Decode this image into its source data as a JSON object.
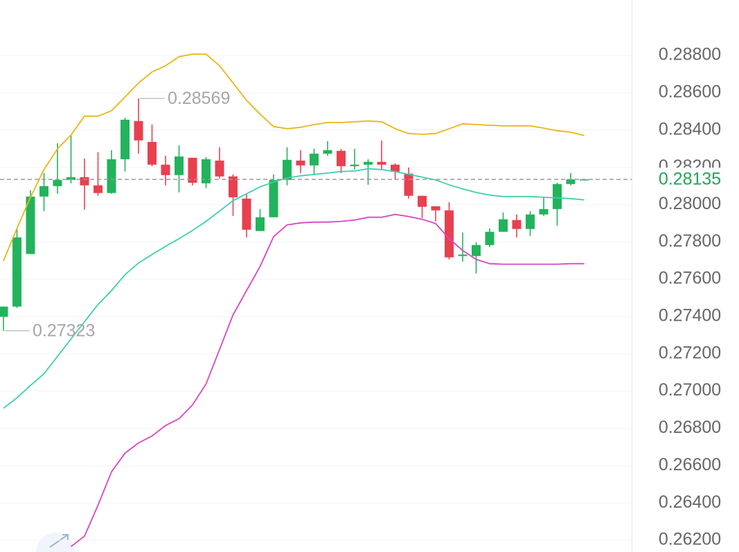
{
  "chart_data": {
    "type": "candlestick",
    "ylim": [
      0.26137,
      0.29097
    ],
    "yticks": [
      {
        "value": 0.288,
        "label": "0.28800"
      },
      {
        "value": 0.286,
        "label": "0.28600"
      },
      {
        "value": 0.284,
        "label": "0.28400"
      },
      {
        "value": 0.282,
        "label": "0.28200"
      },
      {
        "value": 0.28,
        "label": "0.28000"
      },
      {
        "value": 0.278,
        "label": "0.27800"
      },
      {
        "value": 0.276,
        "label": "0.27600"
      },
      {
        "value": 0.274,
        "label": "0.27400"
      },
      {
        "value": 0.272,
        "label": "0.27200"
      },
      {
        "value": 0.27,
        "label": "0.27000"
      },
      {
        "value": 0.268,
        "label": "0.26800"
      },
      {
        "value": 0.266,
        "label": "0.26600"
      },
      {
        "value": 0.264,
        "label": "0.26400"
      },
      {
        "value": 0.262,
        "label": "0.26200"
      }
    ],
    "grid": true,
    "up_color": "#22b35c",
    "down_color": "#e8404f",
    "open": [
      0.27398,
      0.27453,
      0.27735,
      0.28043,
      0.28099,
      0.28132,
      0.28147,
      0.28103,
      0.28062,
      0.28243,
      0.28448,
      0.28336,
      0.28214,
      0.28158,
      0.28251,
      0.28114,
      0.28236,
      0.28151,
      0.28032,
      0.27858,
      0.27932,
      0.28132,
      0.28236,
      0.2821,
      0.28273,
      0.28288,
      0.28206,
      0.28214,
      0.28229,
      0.28214,
      0.28166,
      0.28047,
      0.27991,
      0.27969,
      0.27724,
      0.27724,
      0.27783,
      0.27854,
      0.27917,
      0.27869,
      0.27947,
      0.27976,
      0.2811,
      0.28135
    ],
    "high": [
      0.27453,
      0.27872,
      0.28077,
      0.28169,
      0.28329,
      0.2837,
      0.28247,
      0.28281,
      0.28292,
      0.28466,
      0.28569,
      0.28429,
      0.28262,
      0.28318,
      0.28251,
      0.28255,
      0.28307,
      0.28162,
      0.28058,
      0.27976,
      0.28162,
      0.28307,
      0.28292,
      0.28299,
      0.2834,
      0.28299,
      0.28299,
      0.28243,
      0.28344,
      0.28221,
      0.28199,
      0.28047,
      0.27991,
      0.28013,
      0.2785,
      0.27798,
      0.27872,
      0.27958,
      0.27947,
      0.27965,
      0.28039,
      0.28117,
      0.28169,
      0.28135
    ],
    "low": [
      0.27323,
      0.27446,
      0.27735,
      0.27965,
      0.28058,
      0.28114,
      0.27973,
      0.28047,
      0.28058,
      0.28177,
      0.28273,
      0.28206,
      0.28103,
      0.28065,
      0.28103,
      0.28088,
      0.2814,
      0.27939,
      0.27824,
      0.27858,
      0.27932,
      0.28103,
      0.28169,
      0.28162,
      0.28262,
      0.28169,
      0.28188,
      0.28106,
      0.28188,
      0.28132,
      0.28032,
      0.27928,
      0.2791,
      0.27706,
      0.27694,
      0.27631,
      0.27772,
      0.27854,
      0.27824,
      0.27832,
      0.27939,
      0.27887,
      0.28103,
      0.28135
    ],
    "close": [
      0.27453,
      0.27824,
      0.28043,
      0.28099,
      0.28132,
      0.28147,
      0.28103,
      0.28062,
      0.28243,
      0.28455,
      0.28344,
      0.28214,
      0.28158,
      0.28258,
      0.28117,
      0.28243,
      0.28151,
      0.28039,
      0.27865,
      0.27932,
      0.28132,
      0.2824,
      0.2821,
      0.28273,
      0.28292,
      0.28206,
      0.28214,
      0.28229,
      0.28214,
      0.28177,
      0.28047,
      0.27988,
      0.27969,
      0.27717,
      0.27732,
      0.27783,
      0.27854,
      0.27921,
      0.27869,
      0.27947,
      0.27976,
      0.2811,
      0.28135,
      0.28135
    ],
    "overlays": [
      {
        "color": "#ebb515",
        "values": [
          0.27698,
          0.27872,
          0.28039,
          0.28188,
          0.28299,
          0.28373,
          0.28474,
          0.28474,
          0.28503,
          0.28577,
          0.28652,
          0.28711,
          0.28744,
          0.28793,
          0.28807,
          0.28807,
          0.28744,
          0.28652,
          0.28559,
          0.28485,
          0.28418,
          0.28407,
          0.28414,
          0.28429,
          0.2844,
          0.2844,
          0.28444,
          0.28448,
          0.28444,
          0.28407,
          0.28381,
          0.28377,
          0.28381,
          0.28407,
          0.28433,
          0.28429,
          0.28425,
          0.28422,
          0.28422,
          0.28422,
          0.2841,
          0.28396,
          0.28388,
          0.2837
        ]
      },
      {
        "color": "#3dcfae",
        "values": [
          0.26908,
          0.26964,
          0.2703,
          0.27093,
          0.27186,
          0.27279,
          0.27372,
          0.27464,
          0.27539,
          0.27624,
          0.27687,
          0.27732,
          0.27776,
          0.27817,
          0.27861,
          0.2791,
          0.27965,
          0.28021,
          0.28058,
          0.28095,
          0.28121,
          0.28143,
          0.28154,
          0.28162,
          0.28169,
          0.28177,
          0.2818,
          0.28192,
          0.28188,
          0.28177,
          0.28162,
          0.28147,
          0.28132,
          0.28106,
          0.28084,
          0.28065,
          0.28051,
          0.28043,
          0.28043,
          0.28043,
          0.28039,
          0.28036,
          0.28032,
          0.28025
        ]
      },
      {
        "color": "#d846c4",
        "values": [
          null,
          null,
          null,
          null,
          null,
          0.26166,
          0.26222,
          0.26388,
          0.26567,
          0.26667,
          0.26722,
          0.26759,
          0.26815,
          0.26852,
          0.26926,
          0.27038,
          0.27223,
          0.27409,
          0.27539,
          0.27668,
          0.27828,
          0.27891,
          0.27902,
          0.27906,
          0.27906,
          0.2791,
          0.27917,
          0.27932,
          0.27932,
          0.27947,
          0.27936,
          0.27921,
          0.27898,
          0.27817,
          0.27754,
          0.27706,
          0.27683,
          0.2768,
          0.2768,
          0.2768,
          0.2768,
          0.2768,
          0.27683,
          0.27683
        ]
      }
    ],
    "high_label": 0.28569,
    "low_label": 0.27323,
    "last_price": 0.28135,
    "last_price_color": "#22a653"
  }
}
